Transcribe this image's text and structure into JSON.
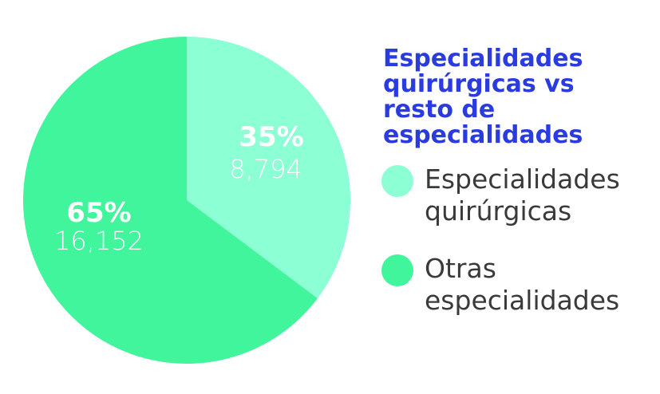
{
  "chart_data": {
    "type": "pie",
    "title": "Especialidades quirúrgicas vs resto de especialidades",
    "slices": [
      {
        "name": "Especialidades quirúrgicas",
        "percent_label": "35%",
        "value_label": "8,794",
        "value": 8794,
        "color": "#8cffd5"
      },
      {
        "name": "Otras especialidades",
        "percent_label": "65%",
        "value_label": "16,152",
        "value": 16152,
        "color": "#40f59b"
      }
    ],
    "legend_position": "right"
  }
}
